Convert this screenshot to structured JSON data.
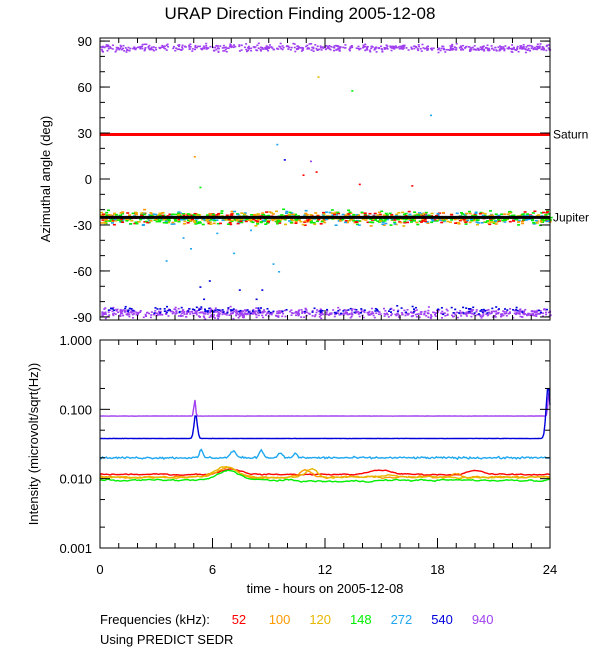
{
  "chart_data": {
    "title": "URAP Direction Finding  2005-12-08",
    "xlabel": "time - hours on 2005-12-08",
    "x_range": [
      0,
      24
    ],
    "x_ticks": [
      "0",
      "6",
      "12",
      "18",
      "24"
    ],
    "panels": [
      {
        "type": "scatter",
        "ylabel": "Azimuthal angle (deg)",
        "ylim": [
          -92,
          92
        ],
        "y_ticks": [
          "90",
          "60",
          "30",
          "0",
          "-30",
          "-60",
          "-90"
        ],
        "reference_lines": [
          {
            "label": "Saturn",
            "y": 29,
            "color": "#ff0000"
          },
          {
            "label": "Jupiter",
            "y": -25,
            "color": "#000000"
          }
        ]
      },
      {
        "type": "line",
        "yscale": "log",
        "ylabel": "Intensity (microvolt/sqrt(Hz))",
        "ylim": [
          0.001,
          1.0
        ],
        "y_ticks": [
          "1.000",
          "0.100",
          "0.010",
          "0.001"
        ],
        "series": [
          {
            "name": "940",
            "level": 0.08
          },
          {
            "name": "540",
            "level": 0.038
          },
          {
            "name": "272",
            "level": 0.02
          },
          {
            "name": "52",
            "level": 0.0115
          },
          {
            "name": "100",
            "level": 0.0105
          },
          {
            "name": "120",
            "level": 0.0105
          },
          {
            "name": "148",
            "level": 0.0095
          }
        ]
      }
    ]
  },
  "legend": {
    "label": "Frequencies (kHz):",
    "items": [
      {
        "value": "52",
        "color": "#ff0000"
      },
      {
        "value": "100",
        "color": "#ff9900"
      },
      {
        "value": "120",
        "color": "#e6b800"
      },
      {
        "value": "148",
        "color": "#00ee00"
      },
      {
        "value": "272",
        "color": "#1ea7f0"
      },
      {
        "value": "540",
        "color": "#0000dd"
      },
      {
        "value": "940",
        "color": "#a040f0"
      }
    ]
  },
  "source": "Using PREDICT SEDR"
}
